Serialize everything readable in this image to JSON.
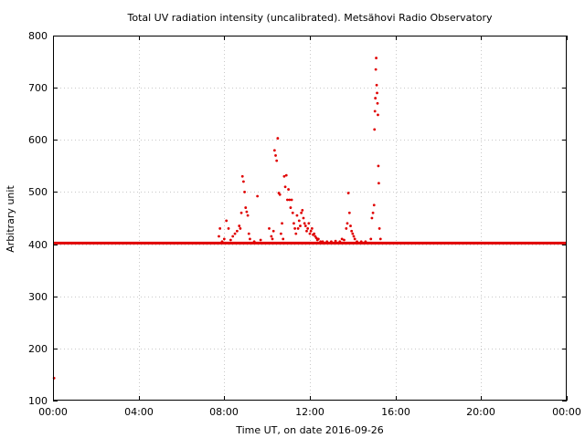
{
  "chart_data": {
    "type": "scatter",
    "title": "Total UV radiation intensity (uncalibrated). Metsähovi Radio Observatory",
    "xlabel": "Time UT, on date 2016-09-26",
    "ylabel": "Arbitrary unit",
    "xlim": [
      0,
      24
    ],
    "ylim": [
      100,
      800
    ],
    "grid": true,
    "x_ticks": [
      {
        "value": 0,
        "label": "00:00"
      },
      {
        "value": 4,
        "label": "04:00"
      },
      {
        "value": 8,
        "label": "08:00"
      },
      {
        "value": 12,
        "label": "12:00"
      },
      {
        "value": 16,
        "label": "16:00"
      },
      {
        "value": 20,
        "label": "20:00"
      },
      {
        "value": 24,
        "label": "00:00"
      }
    ],
    "y_ticks": [
      {
        "value": 100,
        "label": "100"
      },
      {
        "value": 200,
        "label": "200"
      },
      {
        "value": 300,
        "label": "300"
      },
      {
        "value": 400,
        "label": "400"
      },
      {
        "value": 500,
        "label": "500"
      },
      {
        "value": 600,
        "label": "600"
      },
      {
        "value": 700,
        "label": "700"
      },
      {
        "value": 800,
        "label": "800"
      }
    ],
    "baseline": {
      "y": 402,
      "x_start": 0,
      "x_end": 24
    },
    "series": [
      {
        "color": "#e00000",
        "points": [
          [
            0.05,
            143
          ],
          [
            7.75,
            415
          ],
          [
            7.8,
            430
          ],
          [
            7.9,
            405
          ],
          [
            8.0,
            410
          ],
          [
            8.1,
            445
          ],
          [
            8.2,
            430
          ],
          [
            8.3,
            408
          ],
          [
            8.4,
            415
          ],
          [
            8.5,
            420
          ],
          [
            8.6,
            425
          ],
          [
            8.7,
            435
          ],
          [
            8.75,
            430
          ],
          [
            8.8,
            460
          ],
          [
            8.85,
            530
          ],
          [
            8.9,
            520
          ],
          [
            8.95,
            500
          ],
          [
            9.0,
            470
          ],
          [
            9.05,
            462
          ],
          [
            9.1,
            455
          ],
          [
            9.15,
            420
          ],
          [
            9.2,
            410
          ],
          [
            9.4,
            405
          ],
          [
            9.55,
            492
          ],
          [
            9.7,
            408
          ],
          [
            10.1,
            430
          ],
          [
            10.2,
            415
          ],
          [
            10.25,
            410
          ],
          [
            10.3,
            425
          ],
          [
            10.35,
            580
          ],
          [
            10.4,
            570
          ],
          [
            10.45,
            560
          ],
          [
            10.5,
            603
          ],
          [
            10.55,
            498
          ],
          [
            10.6,
            495
          ],
          [
            10.65,
            420
          ],
          [
            10.7,
            440
          ],
          [
            10.75,
            410
          ],
          [
            10.8,
            530
          ],
          [
            10.85,
            510
          ],
          [
            10.9,
            532
          ],
          [
            10.95,
            485
          ],
          [
            11.0,
            505
          ],
          [
            11.05,
            485
          ],
          [
            11.1,
            470
          ],
          [
            11.15,
            485
          ],
          [
            11.2,
            460
          ],
          [
            11.25,
            440
          ],
          [
            11.3,
            430
          ],
          [
            11.35,
            420
          ],
          [
            11.4,
            455
          ],
          [
            11.45,
            430
          ],
          [
            11.5,
            445
          ],
          [
            11.55,
            435
          ],
          [
            11.6,
            460
          ],
          [
            11.65,
            465
          ],
          [
            11.7,
            450
          ],
          [
            11.75,
            440
          ],
          [
            11.8,
            435
          ],
          [
            11.85,
            425
          ],
          [
            11.9,
            430
          ],
          [
            11.95,
            440
          ],
          [
            12.0,
            420
          ],
          [
            12.05,
            425
          ],
          [
            12.1,
            430
          ],
          [
            12.15,
            418
          ],
          [
            12.2,
            420
          ],
          [
            12.25,
            415
          ],
          [
            12.3,
            412
          ],
          [
            12.35,
            408
          ],
          [
            12.4,
            410
          ],
          [
            12.5,
            405
          ],
          [
            12.6,
            405
          ],
          [
            12.8,
            405
          ],
          [
            13.0,
            405
          ],
          [
            13.2,
            406
          ],
          [
            13.4,
            405
          ],
          [
            13.5,
            410
          ],
          [
            13.6,
            408
          ],
          [
            13.7,
            430
          ],
          [
            13.75,
            440
          ],
          [
            13.8,
            498
          ],
          [
            13.85,
            460
          ],
          [
            13.9,
            435
          ],
          [
            13.95,
            425
          ],
          [
            14.0,
            420
          ],
          [
            14.05,
            415
          ],
          [
            14.1,
            410
          ],
          [
            14.2,
            405
          ],
          [
            14.4,
            405
          ],
          [
            14.6,
            405
          ],
          [
            14.85,
            410
          ],
          [
            14.9,
            450
          ],
          [
            14.95,
            460
          ],
          [
            15.0,
            475
          ],
          [
            15.02,
            620
          ],
          [
            15.04,
            655
          ],
          [
            15.06,
            680
          ],
          [
            15.08,
            735
          ],
          [
            15.1,
            757
          ],
          [
            15.12,
            705
          ],
          [
            15.14,
            690
          ],
          [
            15.16,
            670
          ],
          [
            15.18,
            648
          ],
          [
            15.2,
            550
          ],
          [
            15.22,
            517
          ],
          [
            15.25,
            430
          ],
          [
            15.3,
            410
          ]
        ]
      }
    ]
  }
}
